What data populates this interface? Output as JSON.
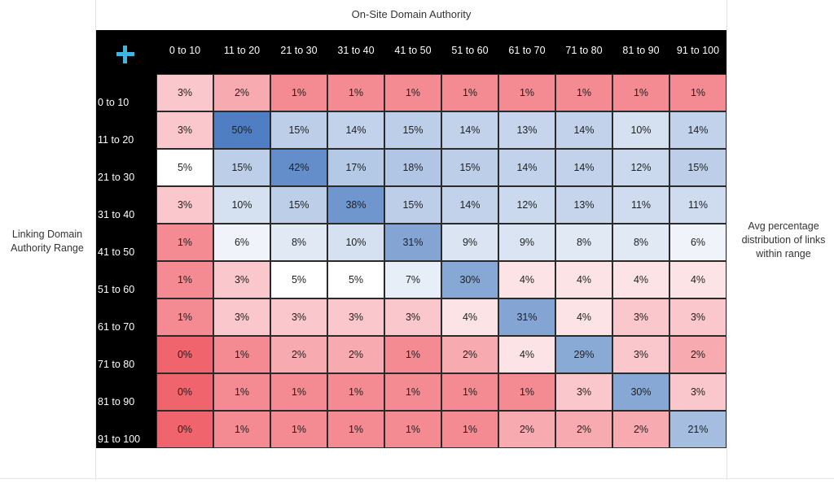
{
  "titles": {
    "top": "On-Site Domain Authority",
    "left": "Linking Domain Authority Range",
    "right": "Avg percentage distribution of links within range"
  },
  "icons": {
    "corner": "plus-icon"
  },
  "colors": {
    "low": "#f0646e",
    "mid": "#ffffff",
    "high": "#4f7fc2",
    "header_bg": "#000000",
    "header_text": "#ffffff",
    "icon": "#3fb6e0"
  },
  "chart_data": {
    "type": "heatmap",
    "title": "On-Site Domain Authority",
    "xlabel": "On-Site Domain Authority",
    "ylabel": "Linking Domain Authority Range",
    "legend_note": "Avg percentage distribution of links within range",
    "columns": [
      "0 to 10",
      "11 to 20",
      "21 to 30",
      "31 to 40",
      "41 to 50",
      "51 to 60",
      "61 to 70",
      "71 to 80",
      "81 to 90",
      "91 to 100"
    ],
    "rows": [
      "0 to 10",
      "11 to 20",
      "21 to 30",
      "31 to 40",
      "41 to 50",
      "51 to 60",
      "61 to 70",
      "71 to 80",
      "81 to 90",
      "91 to 100"
    ],
    "unit": "%",
    "values": [
      [
        3,
        2,
        1,
        1,
        1,
        1,
        1,
        1,
        1,
        1
      ],
      [
        3,
        50,
        15,
        14,
        15,
        14,
        13,
        14,
        10,
        14
      ],
      [
        5,
        15,
        42,
        17,
        18,
        15,
        14,
        14,
        12,
        15
      ],
      [
        3,
        10,
        15,
        38,
        15,
        14,
        12,
        13,
        11,
        11
      ],
      [
        1,
        6,
        8,
        10,
        31,
        9,
        9,
        8,
        8,
        6
      ],
      [
        1,
        3,
        5,
        5,
        7,
        30,
        4,
        4,
        4,
        4
      ],
      [
        1,
        3,
        3,
        3,
        3,
        4,
        31,
        4,
        3,
        3
      ],
      [
        0,
        1,
        2,
        2,
        1,
        2,
        4,
        29,
        3,
        2
      ],
      [
        0,
        1,
        1,
        1,
        1,
        1,
        1,
        3,
        30,
        3
      ],
      [
        0,
        1,
        1,
        1,
        1,
        1,
        2,
        2,
        2,
        21
      ]
    ]
  }
}
